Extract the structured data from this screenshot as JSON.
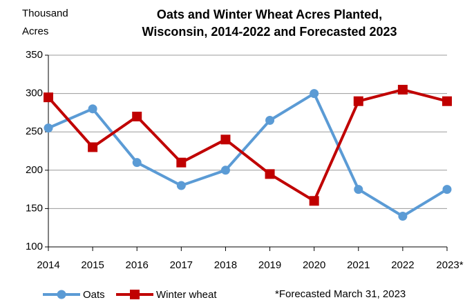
{
  "chart_data": {
    "type": "line",
    "title": [
      "Oats and Winter Wheat Acres Planted,",
      "Wisconsin, 2014-2022 and Forecasted 2023"
    ],
    "y_label": [
      "Thousand",
      "Acres"
    ],
    "annotation": "*Forecasted March 31, 2023",
    "categories": [
      "2014",
      "2015",
      "2016",
      "2017",
      "2018",
      "2019",
      "2020",
      "2021",
      "2022",
      "2023*"
    ],
    "series": [
      {
        "name": "Oats",
        "color": "#5b9bd5",
        "marker": "circle",
        "values": [
          255,
          280,
          210,
          180,
          200,
          265,
          300,
          175,
          140,
          175
        ]
      },
      {
        "name": "Winter wheat",
        "color": "#c00000",
        "marker": "square",
        "values": [
          295,
          230,
          270,
          210,
          240,
          195,
          160,
          290,
          305,
          290
        ]
      }
    ],
    "ylim": [
      100,
      350
    ],
    "yticks": [
      100,
      150,
      200,
      250,
      300,
      350
    ],
    "grid": true
  }
}
